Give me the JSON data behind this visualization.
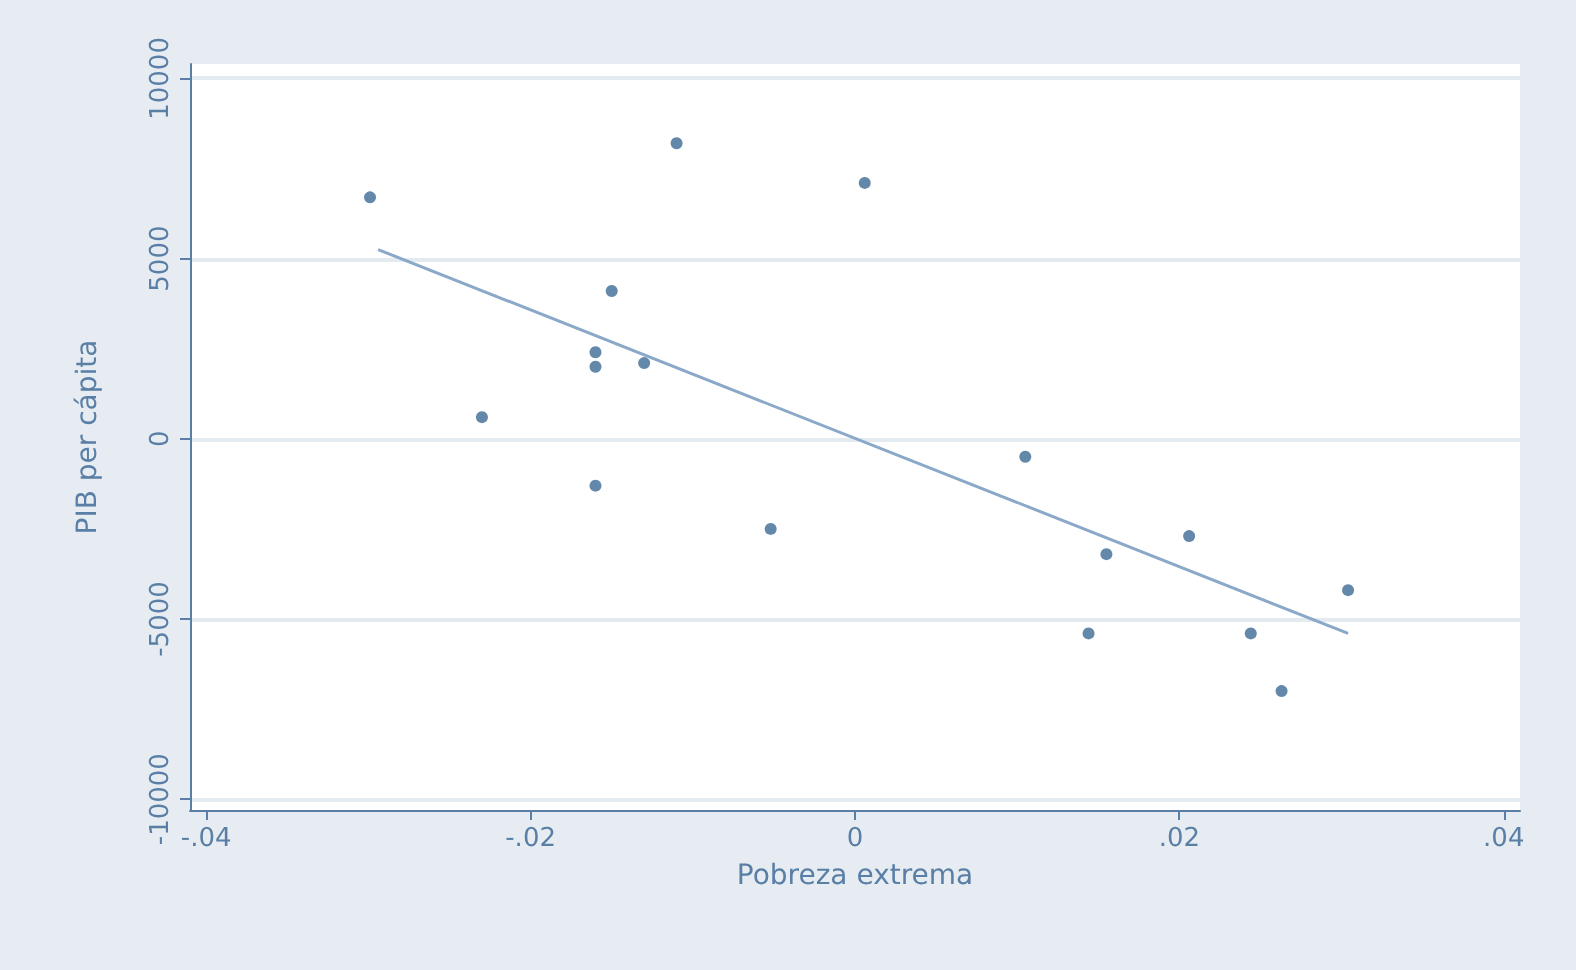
{
  "chart_data": {
    "type": "scatter",
    "xlabel": "Pobreza extrema",
    "ylabel": "PIB per cápita",
    "xlim": [
      -0.041,
      0.041
    ],
    "ylim": [
      -10300,
      10400
    ],
    "xticks": [
      {
        "value": -0.04,
        "label": "-.04"
      },
      {
        "value": -0.02,
        "label": "-.02"
      },
      {
        "value": 0,
        "label": "0"
      },
      {
        "value": 0.02,
        "label": ".02"
      },
      {
        "value": 0.04,
        "label": ".04"
      }
    ],
    "yticks": [
      -10000,
      -5000,
      0,
      5000,
      10000
    ],
    "grid": "y",
    "marker": "circle",
    "series": [
      {
        "type": "scatter",
        "color": "#3d6a95",
        "x": [
          -0.0299,
          -0.023,
          -0.015,
          -0.016,
          -0.016,
          -0.013,
          -0.016,
          -0.011,
          -0.0052,
          0.0006,
          0.0105,
          0.0155,
          0.0144,
          0.0206,
          0.0244,
          0.0263,
          0.0304
        ],
        "values": [
          6700,
          600,
          4100,
          2400,
          2000,
          2100,
          -1300,
          8200,
          -2500,
          7100,
          -500,
          -3200,
          -5400,
          -2700,
          -5400,
          -7000,
          -4200
        ]
      },
      {
        "type": "line",
        "color": "#8aa8c8",
        "marker": "none",
        "x": [
          -0.0294,
          0.0304
        ],
        "values": [
          5250,
          -5400
        ]
      }
    ]
  }
}
